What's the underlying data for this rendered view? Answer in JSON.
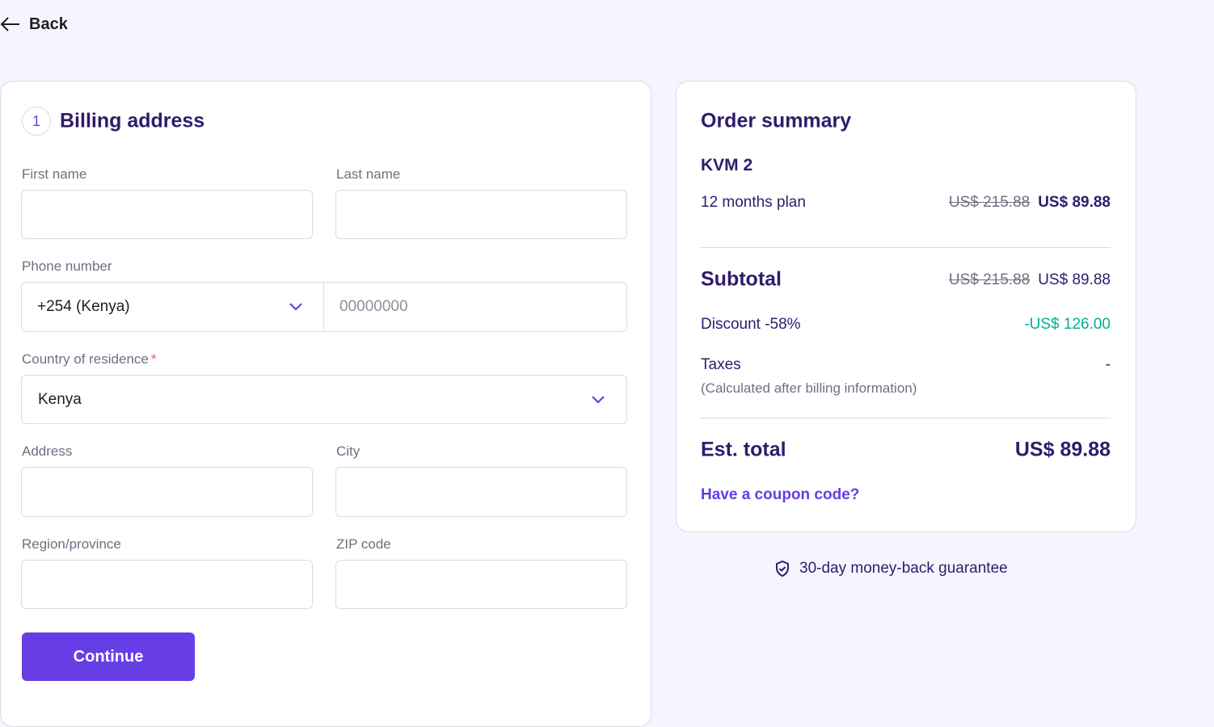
{
  "nav": {
    "back": "Back"
  },
  "billing": {
    "step": "1",
    "title": "Billing address",
    "first_name": "First name",
    "last_name": "Last name",
    "phone": {
      "label": "Phone number",
      "code": "+254 (Kenya)",
      "placeholder": "00000000"
    },
    "country": {
      "label": "Country of residence",
      "required": "*",
      "value": "Kenya"
    },
    "address": "Address",
    "city": "City",
    "region": "Region/province",
    "zip": "ZIP code",
    "continue": "Continue"
  },
  "summary": {
    "title": "Order summary",
    "product": "KVM 2",
    "plan": {
      "label": "12 months plan",
      "old_price": "US$ 215.88",
      "price": "US$ 89.88"
    },
    "subtotal": {
      "label": "Subtotal",
      "old_price": "US$ 215.88",
      "price": "US$ 89.88"
    },
    "discount": {
      "label": "Discount -58%",
      "value": "-US$ 126.00"
    },
    "taxes": {
      "label": "Taxes",
      "note": "(Calculated after billing information)",
      "value": "-"
    },
    "total": {
      "label": "Est. total",
      "value": "US$ 89.88"
    },
    "coupon": "Have a coupon code?"
  },
  "guarantee": "30-day money-back guarantee"
}
